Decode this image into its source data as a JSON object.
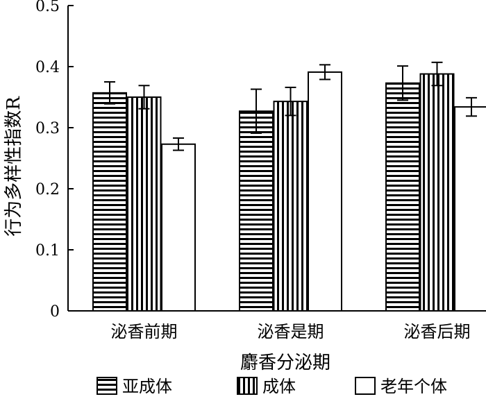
{
  "chart_data": {
    "type": "bar",
    "xlabel": "麝香分泌期",
    "ylabel": "行为多样性指数R",
    "ylim": [
      0,
      0.5
    ],
    "yticks": [
      0,
      0.1,
      0.2,
      0.3,
      0.4,
      0.5
    ],
    "ytick_labels": [
      "0",
      "0.1",
      "0.2",
      "0.3",
      "0.4",
      "0.5"
    ],
    "categories": [
      "泌香前期",
      "泌香是期",
      "泌香后期"
    ],
    "series": [
      {
        "name": "亚成体",
        "pattern": "horizontal-stripes",
        "values": [
          0.357,
          0.327,
          0.373
        ],
        "errors": [
          0.018,
          0.036,
          0.028
        ]
      },
      {
        "name": "成体",
        "pattern": "vertical-stripes",
        "values": [
          0.35,
          0.343,
          0.388
        ],
        "errors": [
          0.019,
          0.023,
          0.019
        ]
      },
      {
        "name": "老年个体",
        "pattern": "white",
        "values": [
          0.273,
          0.391,
          0.334
        ],
        "errors": [
          0.01,
          0.012,
          0.015
        ]
      }
    ],
    "grid": false,
    "legend": "bottom",
    "colors": {
      "stroke": "#000000",
      "fill": "#ffffff"
    }
  }
}
